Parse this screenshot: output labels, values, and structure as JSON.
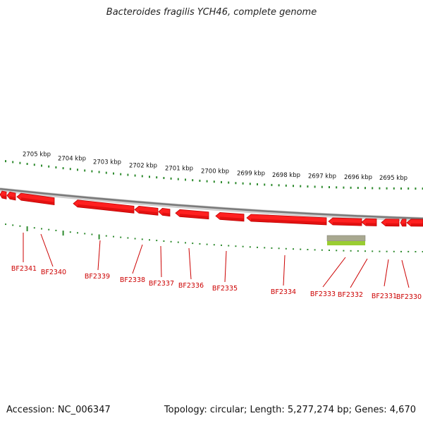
{
  "title": "Bacteroides fragilis YCH46, complete genome",
  "footer": {
    "accession": "Accession: NC_006347",
    "topology": "Topology: circular; Length: 5,277,274 bp; Genes: 4,670"
  },
  "colors": {
    "gene": "#ff2020",
    "gene_dark": "#c00000",
    "tick": "#2e8b2e",
    "gene_label": "#cc0000",
    "backbone": "#808080",
    "highlight": "#9acd32"
  },
  "scale_labels": [
    "2705 kbp",
    "2704 kbp",
    "2703 kbp",
    "2702 kbp",
    "2701 kbp",
    "2700 kbp",
    "2699 kbp",
    "2698 kbp",
    "2697 kbp",
    "2696 kbp",
    "2695 kbp"
  ],
  "genes": [
    {
      "name": "BF2341"
    },
    {
      "name": "BF2340"
    },
    {
      "name": "BF2339"
    },
    {
      "name": "BF2338"
    },
    {
      "name": "BF2337"
    },
    {
      "name": "BF2336"
    },
    {
      "name": "BF2335"
    },
    {
      "name": "BF2334"
    },
    {
      "name": "BF2333"
    },
    {
      "name": "BF2332"
    },
    {
      "name": "BF2331"
    },
    {
      "name": "BF2330"
    }
  ]
}
